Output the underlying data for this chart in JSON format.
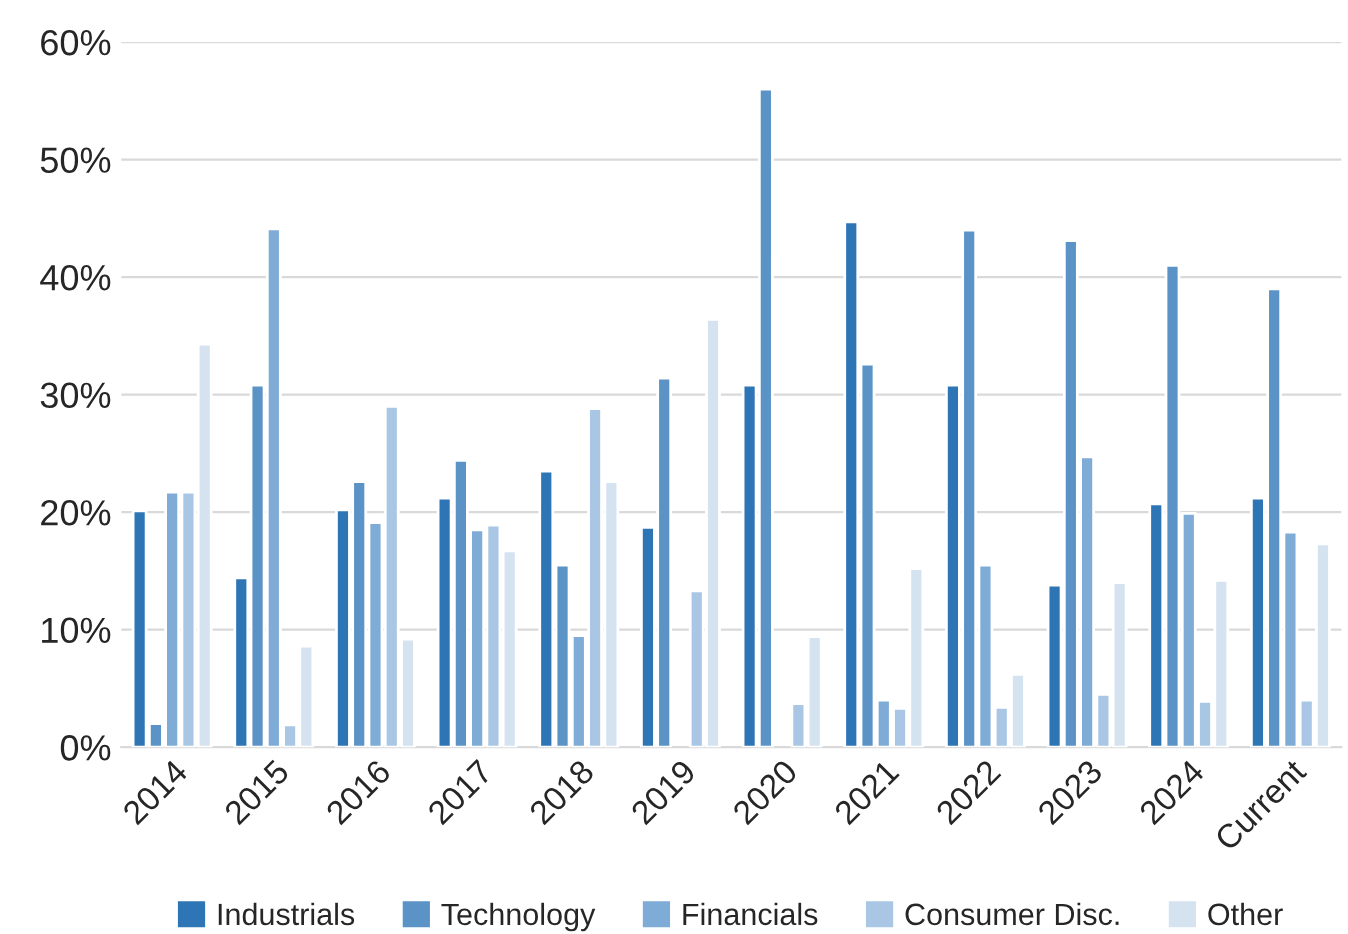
{
  "chart_data": {
    "type": "bar",
    "categories": [
      "2014",
      "2015",
      "2016",
      "2017",
      "2018",
      "2019",
      "2020",
      "2021",
      "2022",
      "2023",
      "2024",
      "Current"
    ],
    "series": [
      {
        "name": "Industrials",
        "color": "#2e75b6",
        "values": [
          20.1,
          14.4,
          20.2,
          21.2,
          23.5,
          18.7,
          30.8,
          44.7,
          30.8,
          13.8,
          20.7,
          21.2
        ]
      },
      {
        "name": "Technology",
        "color": "#5b93c7",
        "values": [
          2.0,
          30.8,
          22.6,
          24.4,
          15.5,
          31.4,
          56.0,
          32.6,
          44.0,
          43.1,
          41.0,
          39.0
        ]
      },
      {
        "name": "Financials",
        "color": "#7facd6",
        "values": [
          21.7,
          44.1,
          19.1,
          18.5,
          9.5,
          null,
          null,
          4.0,
          15.5,
          24.7,
          19.9,
          18.3
        ]
      },
      {
        "name": "Consumer Disc.",
        "color": "#a9c7e4",
        "values": [
          21.7,
          1.9,
          29.0,
          18.9,
          28.8,
          13.3,
          3.7,
          3.3,
          3.4,
          4.5,
          3.9,
          4.0
        ]
      },
      {
        "name": "Other",
        "color": "#d5e3f1",
        "values": [
          34.3,
          8.6,
          9.2,
          16.7,
          22.6,
          36.4,
          9.4,
          15.2,
          6.2,
          14.0,
          14.2,
          17.3
        ]
      }
    ],
    "ylim": [
      0,
      60
    ],
    "yticks": [
      {
        "value": 0,
        "label": "0%"
      },
      {
        "value": 10,
        "label": "10%"
      },
      {
        "value": 20,
        "label": "20%"
      },
      {
        "value": 30,
        "label": "30%"
      },
      {
        "value": 40,
        "label": "40%"
      },
      {
        "value": 50,
        "label": "50%"
      },
      {
        "value": 60,
        "label": "60%"
      }
    ],
    "grid": "y",
    "legend": "bottom"
  }
}
